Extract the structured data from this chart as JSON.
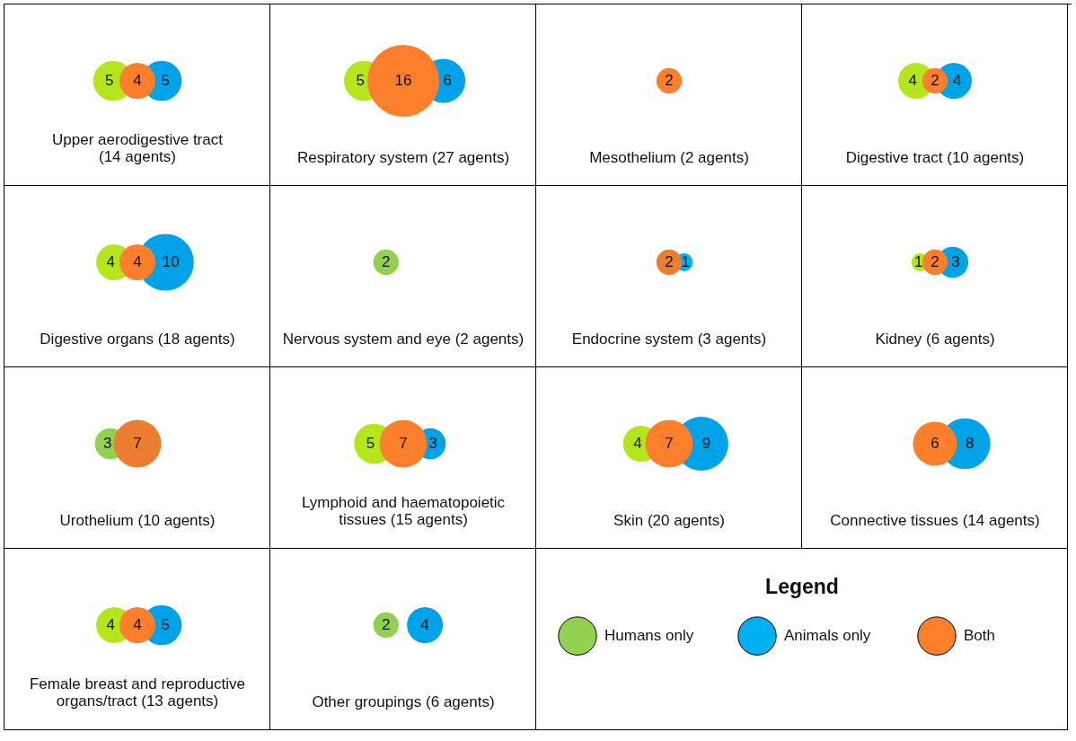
{
  "chart_data": [
    {
      "type": "other",
      "title": "Upper aerodigestive tract\n(14 agents)",
      "categories": [
        null,
        null,
        null
      ],
      "values": [
        5,
        4,
        5
      ],
      "colors": [
        "#b5e61d",
        "#fd7f2c",
        "#00a2e8"
      ],
      "data_labels": true
    },
    {
      "type": "other",
      "title": "Respiratory system (27 agents)",
      "categories": [
        null,
        null,
        null
      ],
      "values": [
        5,
        16,
        6
      ],
      "colors": [
        "#b5e61d",
        "#fd7f2c",
        "#00a2e8"
      ],
      "data_labels": true
    },
    {
      "type": "other",
      "title": "Mesothelium (2 agents)",
      "categories": [
        null,
        null,
        null
      ],
      "values": [
        null,
        2,
        null
      ],
      "colors": [
        null,
        "#fd7f2c",
        null
      ],
      "data_labels": true
    },
    {
      "type": "other",
      "title": "Digestive tract (10 agents)",
      "categories": [
        null,
        null,
        null
      ],
      "values": [
        4,
        2,
        4
      ],
      "colors": [
        "#b5e61d",
        "#fd7f2c",
        "#00a2e8"
      ],
      "data_labels": true
    },
    {
      "type": "other",
      "title": "Digestive organs (18 agents)",
      "categories": [
        null,
        null,
        null
      ],
      "values": [
        4,
        4,
        10
      ],
      "colors": [
        "#b5e61d",
        "#fd7f2c",
        "#00a2e8"
      ],
      "data_labels": true
    },
    {
      "type": "other",
      "title": "Nervous system and eye  (2 agents)",
      "categories": [
        null,
        null,
        null
      ],
      "values": [
        2,
        null,
        null
      ],
      "colors": [
        "#92d050",
        null,
        null
      ],
      "data_labels": true
    },
    {
      "type": "other",
      "title": "Endocrine system (3 agents)",
      "categories": [
        null,
        null,
        null
      ],
      "values": [
        null,
        2,
        1
      ],
      "colors": [
        null,
        "#ed7d31",
        "#00b0f0"
      ],
      "data_labels": true
    },
    {
      "type": "other",
      "title": "Kidney (6 agents)",
      "categories": [
        null,
        null,
        null
      ],
      "values": [
        1,
        2,
        3
      ],
      "colors": [
        "#b5e61d",
        "#fd7f2c",
        "#00a2e8"
      ],
      "data_labels": true
    },
    {
      "type": "other",
      "title": "Urothelium (10 agents)",
      "categories": [
        null,
        null,
        null
      ],
      "values": [
        3,
        7,
        null
      ],
      "colors": [
        "#92d050",
        "#ed7d31",
        null
      ],
      "data_labels": true
    },
    {
      "type": "other",
      "title": "Lymphoid and haematopoietic\ntissues (15 agents)",
      "categories": [
        null,
        null,
        null
      ],
      "values": [
        5,
        7,
        3
      ],
      "colors": [
        "#b5e61d",
        "#fd7f2c",
        "#00a2e8"
      ],
      "data_labels": true
    },
    {
      "type": "other",
      "title": "Skin (20 agents)",
      "categories": [
        null,
        null,
        null
      ],
      "values": [
        4,
        7,
        9
      ],
      "colors": [
        "#b5e61d",
        "#fd7f2c",
        "#00a2e8"
      ],
      "data_labels": true
    },
    {
      "type": "other",
      "title": "Connective tissues (14 agents)",
      "categories": [
        null,
        null,
        null
      ],
      "values": [
        null,
        6,
        8
      ],
      "colors": [
        null,
        "#fd7f2c",
        "#00a2e8"
      ],
      "data_labels": true
    },
    {
      "type": "other",
      "title": "Female breast and reproductive\norgans/tract (13 agents)",
      "categories": [
        null,
        null,
        null
      ],
      "values": [
        4,
        4,
        5
      ],
      "colors": [
        "#b5e61d",
        "#fd7f2c",
        "#00a2e8"
      ],
      "data_labels": true
    },
    {
      "type": "other",
      "title": "Other groupings (6 agents)",
      "categories": [
        null,
        null,
        null
      ],
      "values": [
        2,
        null,
        4
      ],
      "colors": [
        "#92d050",
        null,
        "#00a2e8"
      ],
      "data_labels": true
    },
    {
      "type": "other",
      "title": "Legend",
      "categories": [
        "Humans only",
        "Animals only",
        "Both"
      ],
      "colors": [
        "#92d050",
        "#00b0f0",
        "#fd7f2c"
      ]
    }
  ]
}
